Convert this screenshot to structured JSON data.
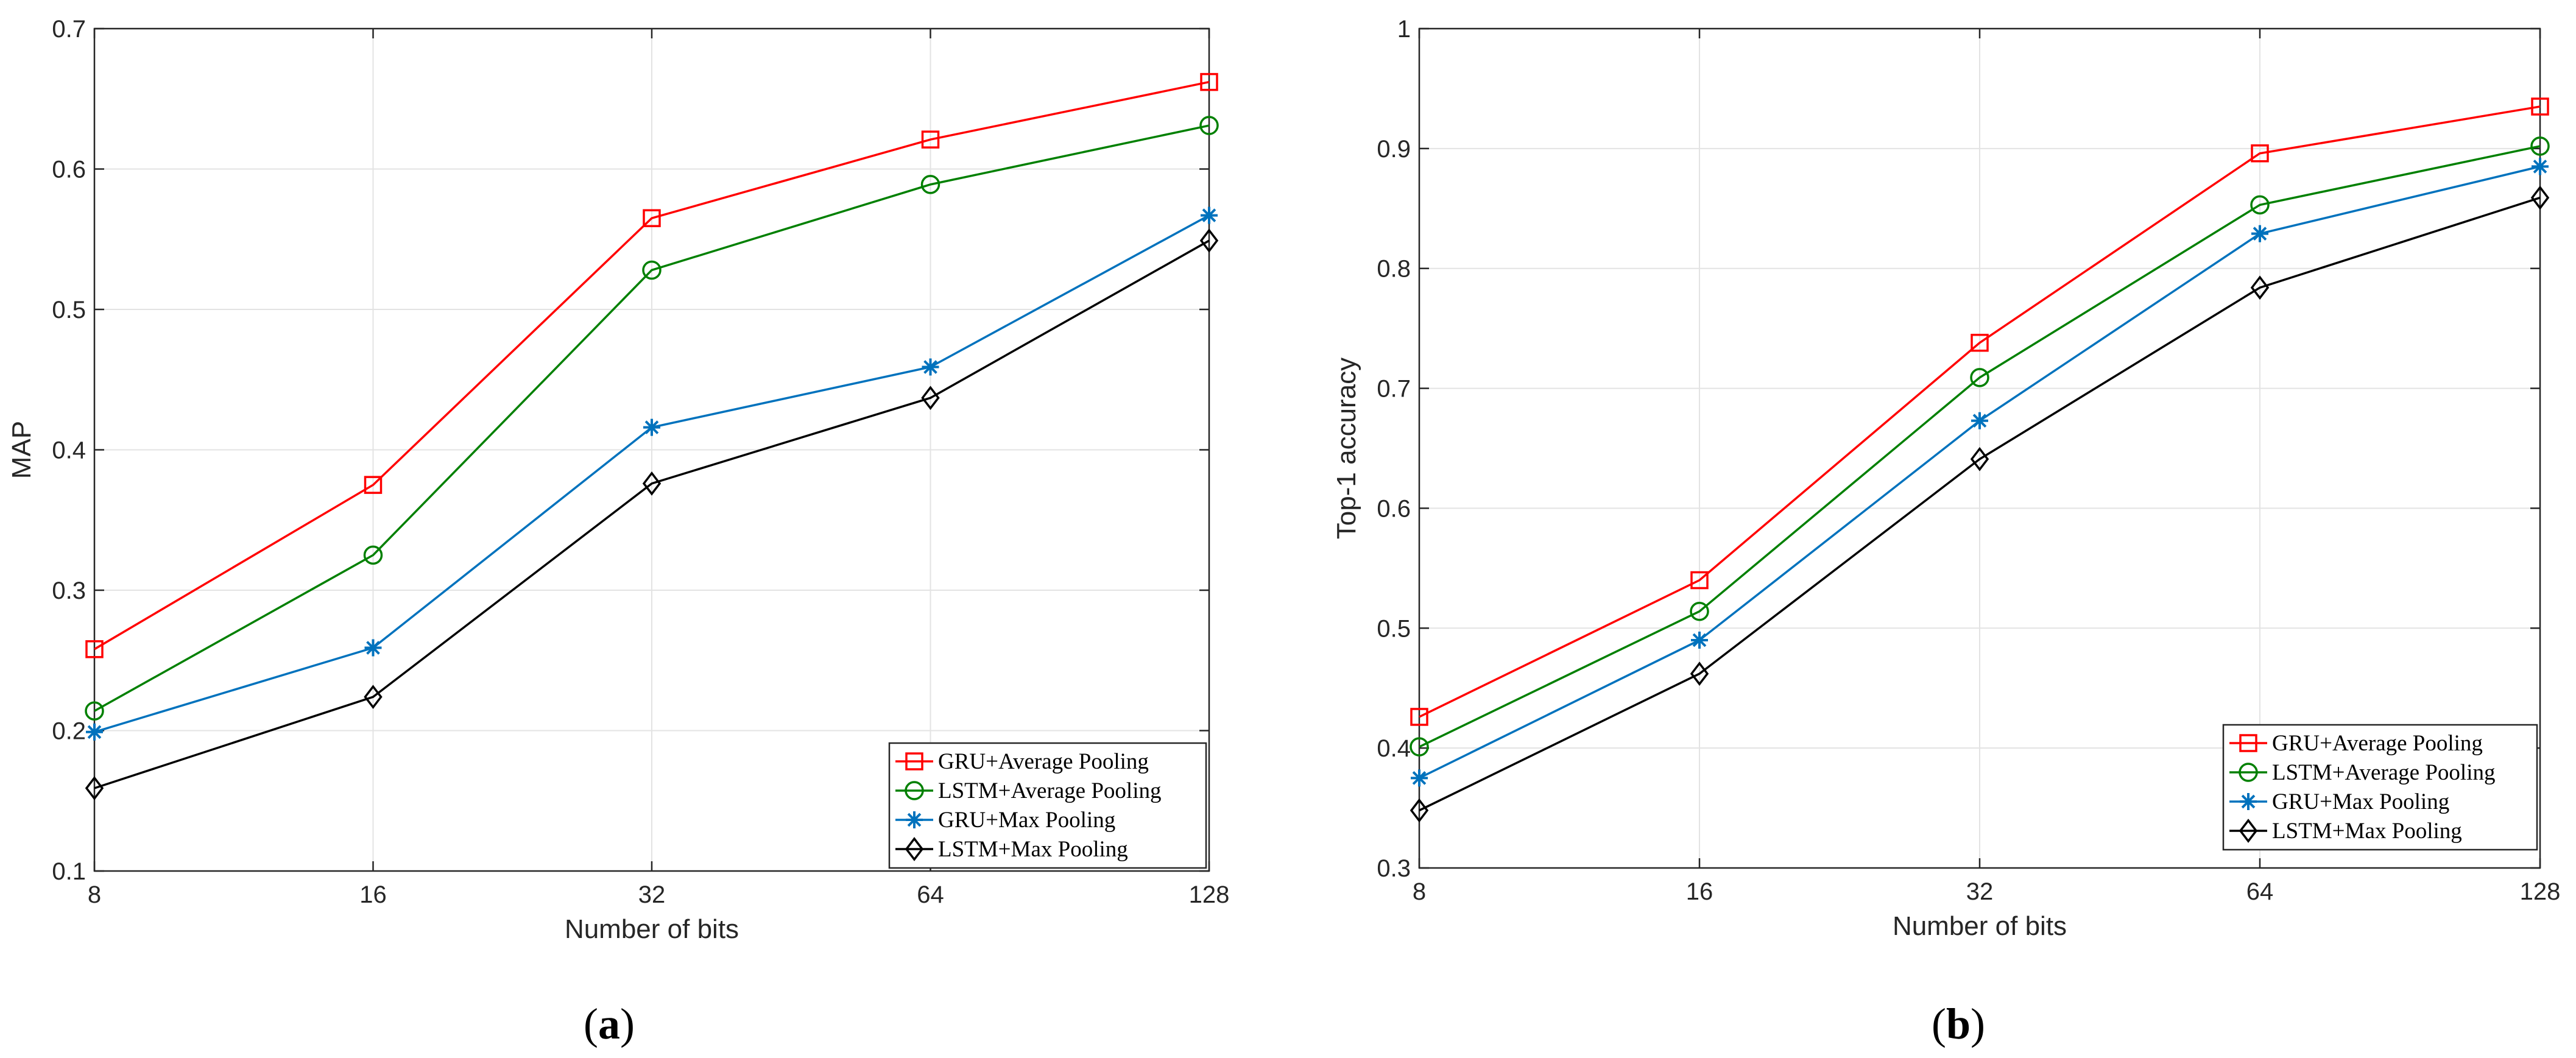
{
  "chart_data": [
    {
      "type": "line",
      "caption_letter": "a",
      "title": "",
      "xlabel": "Number of bits",
      "ylabel": "MAP",
      "categories": [
        "8",
        "16",
        "32",
        "64",
        "128"
      ],
      "ylim": [
        0.1,
        0.7
      ],
      "yticks": [
        "0.1",
        "0.2",
        "0.3",
        "0.4",
        "0.5",
        "0.6",
        "0.7"
      ],
      "grid": true,
      "legend_position": "bottom-right",
      "series": [
        {
          "name": "GRU+Average Pooling",
          "values": [
            0.258,
            0.375,
            0.565,
            0.621,
            0.662
          ],
          "color": "#ff0000",
          "marker": "square"
        },
        {
          "name": "LSTM+Average Pooling",
          "values": [
            0.214,
            0.325,
            0.528,
            0.589,
            0.631
          ],
          "color": "#008000",
          "marker": "circle"
        },
        {
          "name": "GRU+Max Pooling",
          "values": [
            0.199,
            0.259,
            0.416,
            0.459,
            0.567
          ],
          "color": "#0072bd",
          "marker": "star"
        },
        {
          "name": "LSTM+Max Pooling",
          "values": [
            0.159,
            0.224,
            0.376,
            0.437,
            0.549
          ],
          "color": "#000000",
          "marker": "diamond"
        }
      ]
    },
    {
      "type": "line",
      "caption_letter": "b",
      "title": "",
      "xlabel": "Number of bits",
      "ylabel": "Top-1 accuracy",
      "categories": [
        "8",
        "16",
        "32",
        "64",
        "128"
      ],
      "ylim": [
        0.3,
        1.0
      ],
      "yticks": [
        "0.3",
        "0.4",
        "0.5",
        "0.6",
        "0.7",
        "0.8",
        "0.9",
        "1"
      ],
      "grid": true,
      "legend_position": "bottom-right",
      "series": [
        {
          "name": "GRU+Average Pooling",
          "values": [
            0.426,
            0.54,
            0.738,
            0.896,
            0.935
          ],
          "color": "#ff0000",
          "marker": "square"
        },
        {
          "name": "LSTM+Average Pooling",
          "values": [
            0.401,
            0.514,
            0.709,
            0.853,
            0.902
          ],
          "color": "#008000",
          "marker": "circle"
        },
        {
          "name": "GRU+Max Pooling",
          "values": [
            0.375,
            0.49,
            0.673,
            0.829,
            0.885
          ],
          "color": "#0072bd",
          "marker": "star"
        },
        {
          "name": "LSTM+Max Pooling",
          "values": [
            0.348,
            0.462,
            0.641,
            0.784,
            0.859
          ],
          "color": "#000000",
          "marker": "diamond"
        }
      ]
    }
  ]
}
